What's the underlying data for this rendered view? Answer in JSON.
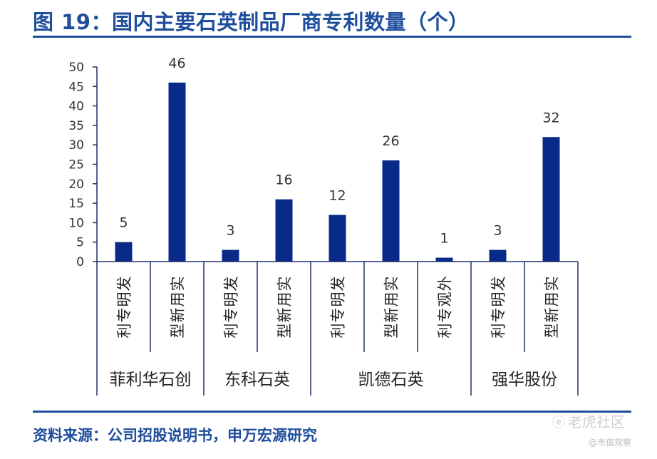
{
  "title": "图 19：国内主要石英制品厂商专利数量（个）",
  "source": "资料来源：公司招股说明书，申万宏源研究",
  "watermark": {
    "main": "老虎社区",
    "sub": "@市值观察",
    "icon": "tiger-logo-icon"
  },
  "colors": {
    "bar": "#0a2a8a",
    "title": "#1f4e9c",
    "axis": "#1f2f6e"
  },
  "chart_data": {
    "type": "bar",
    "categories": [
      "发明专利",
      "实用新型",
      "发明专利",
      "实用新型",
      "发明专利",
      "实用新型",
      "外观专利",
      "发明专利",
      "实用新型"
    ],
    "groups": [
      {
        "name": "菲利华石创",
        "size": 2
      },
      {
        "name": "东科石英",
        "size": 2
      },
      {
        "name": "凯德石英",
        "size": 3
      },
      {
        "name": "强华股份",
        "size": 2
      }
    ],
    "values": [
      5,
      46,
      3,
      16,
      12,
      26,
      1,
      3,
      32
    ],
    "ylim": [
      0,
      50
    ],
    "yticks": [
      0,
      5,
      10,
      15,
      20,
      25,
      30,
      35,
      40,
      45,
      50
    ],
    "data_labels": true,
    "grid": false,
    "legend": "none"
  }
}
